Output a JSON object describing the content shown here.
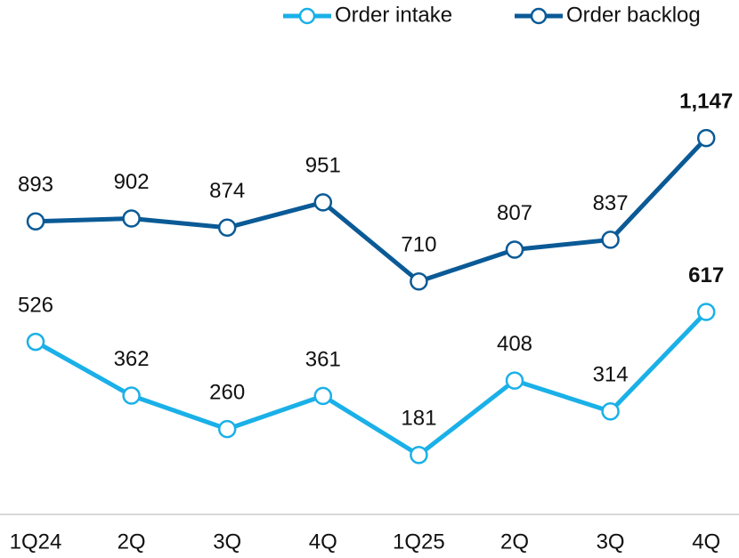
{
  "chart_data": {
    "type": "line",
    "categories": [
      "1Q24",
      "2Q",
      "3Q",
      "4Q",
      "1Q25",
      "2Q",
      "3Q",
      "4Q"
    ],
    "series": [
      {
        "name": "Order intake",
        "color": "#1ab0e8",
        "values": [
          526,
          362,
          260,
          361,
          181,
          408,
          314,
          617
        ]
      },
      {
        "name": "Order backlog",
        "color": "#0a5a96",
        "values": [
          893,
          902,
          874,
          951,
          710,
          807,
          837,
          1147
        ],
        "value_labels": [
          "893",
          "902",
          "874",
          "951",
          "710",
          "807",
          "837",
          "1,147"
        ]
      }
    ],
    "ylim": [
      0,
      1500
    ]
  }
}
